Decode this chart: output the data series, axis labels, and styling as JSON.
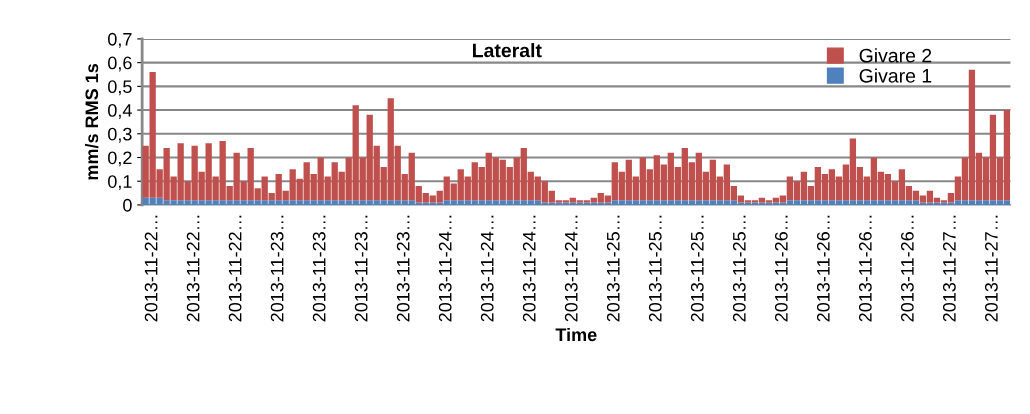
{
  "chart_data": {
    "type": "bar",
    "stacked": true,
    "title": "Lateralt",
    "xlabel": "Time",
    "ylabel": "mm/s RMS 1s",
    "categories": [
      null,
      "2013-11-22…",
      null,
      null,
      null,
      null,
      null,
      "2013-11-22…",
      null,
      null,
      null,
      null,
      null,
      "2013-11-22…",
      null,
      null,
      null,
      null,
      null,
      "2013-11-23…",
      null,
      null,
      null,
      null,
      null,
      "2013-11-23…",
      null,
      null,
      null,
      null,
      null,
      "2013-11-23…",
      null,
      null,
      null,
      null,
      null,
      "2013-11-23…",
      null,
      null,
      null,
      null,
      null,
      "2013-11-24…",
      null,
      null,
      null,
      null,
      null,
      "2013-11-24…",
      null,
      null,
      null,
      null,
      null,
      "2013-11-24…",
      null,
      null,
      null,
      null,
      null,
      "2013-11-24…",
      null,
      null,
      null,
      null,
      null,
      "2013-11-25…",
      null,
      null,
      null,
      null,
      null,
      "2013-11-25…",
      null,
      null,
      null,
      null,
      null,
      "2013-11-25…",
      null,
      null,
      null,
      null,
      null,
      "2013-11-25…",
      null,
      null,
      null,
      null,
      null,
      "2013-11-26…",
      null,
      null,
      null,
      null,
      null,
      "2013-11-26…",
      null,
      null,
      null,
      null,
      null,
      "2013-11-26…",
      null,
      null,
      null,
      null,
      null,
      "2013-11-26…",
      null,
      null,
      null,
      null,
      null,
      "2013-11-27…",
      null,
      null,
      null,
      null,
      null,
      "2013-11-27…",
      null,
      null
    ],
    "series": [
      {
        "name": "Givare 1",
        "color": "#4f81bd",
        "values": [
          0.03,
          0.03,
          0.03,
          0.02,
          0.02,
          0.02,
          0.02,
          0.02,
          0.02,
          0.02,
          0.02,
          0.02,
          0.02,
          0.02,
          0.02,
          0.02,
          0.02,
          0.02,
          0.02,
          0.02,
          0.02,
          0.02,
          0.02,
          0.02,
          0.02,
          0.02,
          0.02,
          0.02,
          0.02,
          0.02,
          0.02,
          0.02,
          0.02,
          0.02,
          0.02,
          0.02,
          0.02,
          0.02,
          0.02,
          0.01,
          0.01,
          0.01,
          0.01,
          0.02,
          0.02,
          0.02,
          0.02,
          0.02,
          0.02,
          0.02,
          0.02,
          0.02,
          0.02,
          0.02,
          0.02,
          0.02,
          0.02,
          0.01,
          0.01,
          0.01,
          0.01,
          0.01,
          0.01,
          0.01,
          0.01,
          0.01,
          0.01,
          0.02,
          0.02,
          0.02,
          0.02,
          0.02,
          0.02,
          0.02,
          0.02,
          0.02,
          0.02,
          0.02,
          0.02,
          0.02,
          0.02,
          0.02,
          0.02,
          0.02,
          0.02,
          0.01,
          0.01,
          0.01,
          0.01,
          0.01,
          0.01,
          0.01,
          0.02,
          0.02,
          0.02,
          0.02,
          0.02,
          0.02,
          0.02,
          0.02,
          0.02,
          0.02,
          0.02,
          0.02,
          0.02,
          0.02,
          0.02,
          0.02,
          0.02,
          0.02,
          0.02,
          0.01,
          0.01,
          0.01,
          0.01,
          0.01,
          0.02,
          0.02,
          0.02,
          0.02,
          0.02,
          0.02,
          0.02,
          0.02
        ]
      },
      {
        "name": "Givare 2",
        "color": "#c0504d",
        "values": [
          0.22,
          0.53,
          0.12,
          0.22,
          0.1,
          0.24,
          0.08,
          0.23,
          0.12,
          0.24,
          0.1,
          0.25,
          0.06,
          0.2,
          0.08,
          0.22,
          0.05,
          0.1,
          0.03,
          0.11,
          0.04,
          0.13,
          0.09,
          0.16,
          0.11,
          0.18,
          0.1,
          0.16,
          0.12,
          0.18,
          0.4,
          0.18,
          0.36,
          0.23,
          0.14,
          0.43,
          0.23,
          0.11,
          0.2,
          0.07,
          0.04,
          0.03,
          0.05,
          0.1,
          0.07,
          0.13,
          0.1,
          0.16,
          0.14,
          0.2,
          0.18,
          0.17,
          0.14,
          0.18,
          0.22,
          0.12,
          0.1,
          0.09,
          0.05,
          0.01,
          0.01,
          0.02,
          0.01,
          0.01,
          0.02,
          0.04,
          0.03,
          0.16,
          0.12,
          0.17,
          0.1,
          0.18,
          0.13,
          0.19,
          0.15,
          0.2,
          0.14,
          0.22,
          0.16,
          0.2,
          0.12,
          0.17,
          0.1,
          0.15,
          0.06,
          0.03,
          0.01,
          0.01,
          0.02,
          0.01,
          0.02,
          0.03,
          0.1,
          0.08,
          0.12,
          0.06,
          0.14,
          0.11,
          0.13,
          0.1,
          0.15,
          0.26,
          0.14,
          0.1,
          0.18,
          0.12,
          0.11,
          0.08,
          0.13,
          0.06,
          0.04,
          0.03,
          0.05,
          0.02,
          0.01,
          0.04,
          0.1,
          0.18,
          0.55,
          0.2,
          0.18,
          0.36,
          0.18,
          0.38
        ]
      }
    ],
    "ylim": [
      0,
      0.7
    ],
    "yticks": [
      0,
      {
        "value": 0.1,
        "label": "0,1"
      },
      {
        "value": 0.2,
        "label": "0,2"
      },
      {
        "value": 0.3,
        "label": "0,3"
      },
      {
        "value": 0.4,
        "label": "0,4"
      },
      {
        "value": 0.5,
        "label": "0,5"
      },
      {
        "value": 0.6,
        "label": "0,6"
      },
      {
        "value": 0.7,
        "label": "0,7"
      }
    ],
    "grid": "y",
    "legend": "top right"
  }
}
